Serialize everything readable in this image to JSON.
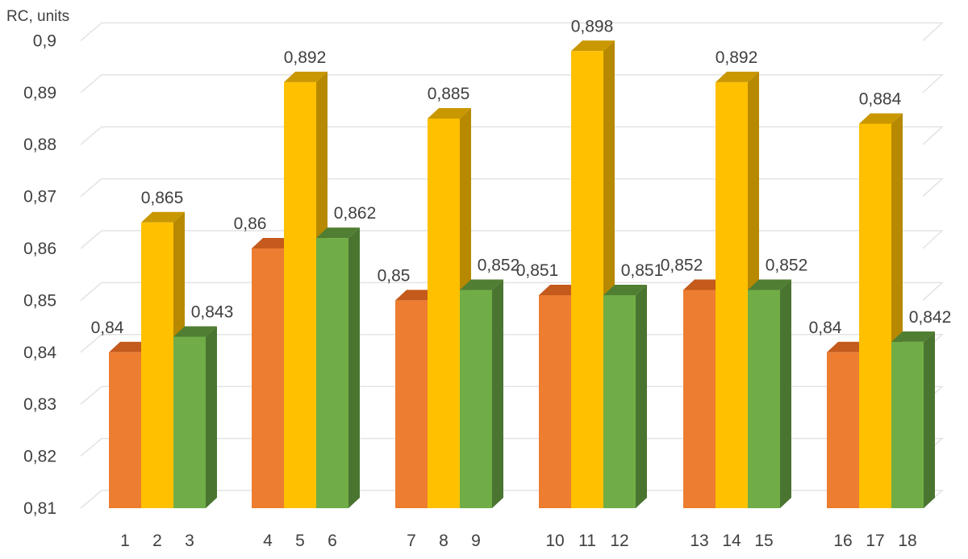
{
  "chart_data": {
    "type": "bar",
    "ylabel": "RC, units",
    "ylim": [
      0.81,
      0.9
    ],
    "y_ticks": [
      "0,81",
      "0,82",
      "0,83",
      "0,84",
      "0,85",
      "0,86",
      "0,87",
      "0,88",
      "0,89",
      "0,9"
    ],
    "grid": true,
    "three_d": true,
    "bars": [
      {
        "x": "1",
        "value": 0.84,
        "label": "0,84",
        "color": "orange"
      },
      {
        "x": "2",
        "value": 0.865,
        "label": "0,865",
        "color": "yellow"
      },
      {
        "x": "3",
        "value": 0.843,
        "label": "0,843",
        "color": "green"
      },
      {
        "x": "4",
        "value": 0.86,
        "label": "0,86",
        "color": "orange"
      },
      {
        "x": "5",
        "value": 0.892,
        "label": "0,892",
        "color": "yellow"
      },
      {
        "x": "6",
        "value": 0.862,
        "label": "0,862",
        "color": "green"
      },
      {
        "x": "7",
        "value": 0.85,
        "label": "0,85",
        "color": "orange"
      },
      {
        "x": "8",
        "value": 0.885,
        "label": "0,885",
        "color": "yellow"
      },
      {
        "x": "9",
        "value": 0.852,
        "label": "0,852",
        "color": "green"
      },
      {
        "x": "10",
        "value": 0.851,
        "label": "0,851",
        "color": "orange"
      },
      {
        "x": "11",
        "value": 0.898,
        "label": "0,898",
        "color": "yellow"
      },
      {
        "x": "12",
        "value": 0.851,
        "label": "0,851",
        "color": "green"
      },
      {
        "x": "13",
        "value": 0.852,
        "label": "0,852",
        "color": "orange"
      },
      {
        "x": "14",
        "value": 0.892,
        "label": "0,892",
        "color": "yellow"
      },
      {
        "x": "15",
        "value": 0.852,
        "label": "0,852",
        "color": "green"
      },
      {
        "x": "16",
        "value": 0.84,
        "label": "0,84",
        "color": "orange"
      },
      {
        "x": "17",
        "value": 0.884,
        "label": "0,884",
        "color": "yellow"
      },
      {
        "x": "18",
        "value": 0.842,
        "label": "0,842",
        "color": "green"
      }
    ],
    "colors": {
      "orange": {
        "front": "#ED7D31",
        "top": "#C45A1C",
        "side": "#B5541D"
      },
      "yellow": {
        "front": "#FFC000",
        "top": "#C99700",
        "side": "#B78900"
      },
      "green": {
        "front": "#70AD47",
        "top": "#507E32",
        "side": "#4A7530"
      }
    },
    "grid_color": "#E3E3E3"
  }
}
